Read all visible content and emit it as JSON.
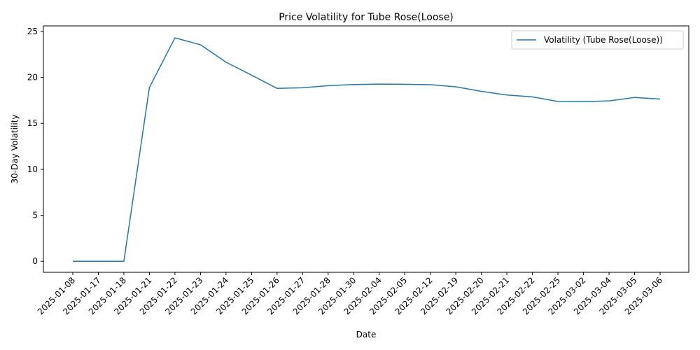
{
  "chart_data": {
    "type": "line",
    "title": "Price Volatility for Tube Rose(Loose)",
    "xlabel": "Date",
    "ylabel": "30-Day Volatility",
    "categories": [
      "2025-01-08",
      "2025-01-17",
      "2025-01-18",
      "2025-01-21",
      "2025-01-22",
      "2025-01-23",
      "2025-01-24",
      "2025-01-25",
      "2025-01-26",
      "2025-01-27",
      "2025-01-28",
      "2025-01-30",
      "2025-02-04",
      "2025-02-05",
      "2025-02-12",
      "2025-02-19",
      "2025-02-20",
      "2025-02-21",
      "2025-02-22",
      "2025-02-25",
      "2025-03-02",
      "2025-03-04",
      "2025-03-05",
      "2025-03-06"
    ],
    "series": [
      {
        "name": "Volatility (Tube Rose(Loose))",
        "color": "#1f77b4",
        "values": [
          0,
          0,
          0,
          18.9,
          24.3,
          23.55,
          21.65,
          20.25,
          18.8,
          18.87,
          19.1,
          19.22,
          19.27,
          19.25,
          19.2,
          18.98,
          18.48,
          18.08,
          17.88,
          17.38,
          17.36,
          17.44,
          17.82,
          17.64
        ]
      }
    ],
    "ylim": [
      -1.2,
      25.6
    ],
    "yticks": [
      0,
      5,
      10,
      15,
      20,
      25
    ],
    "grid": false,
    "legend_position": "top-right"
  }
}
